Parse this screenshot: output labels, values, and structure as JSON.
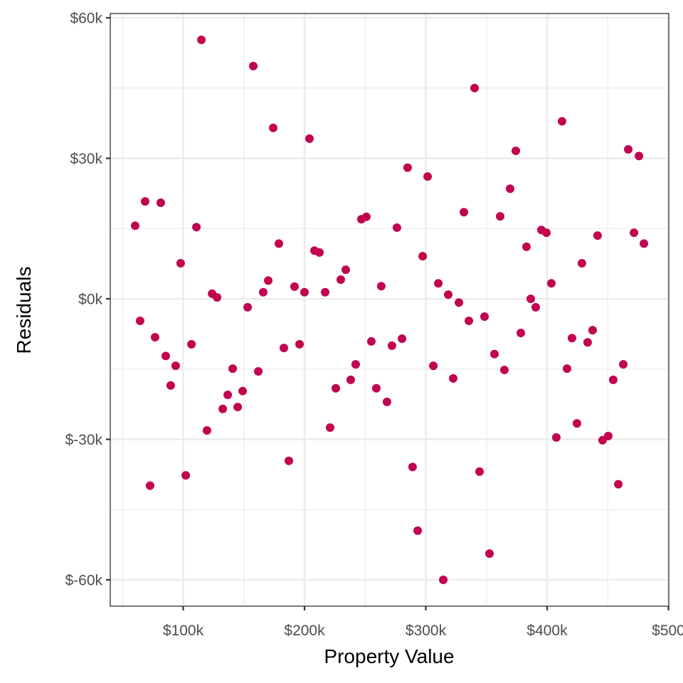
{
  "chart_data": {
    "type": "scatter",
    "title": "",
    "xlabel": "Property Value",
    "ylabel": "Residuals",
    "xlim": [
      40,
      500
    ],
    "ylim": [
      -66,
      60
    ],
    "x_ticks": [
      100,
      200,
      300,
      400,
      500
    ],
    "x_tick_labels": [
      "$100k",
      "$200k",
      "$300k",
      "$400k",
      "$500"
    ],
    "y_ticks": [
      60,
      30,
      0,
      -30,
      -60
    ],
    "y_tick_labels": [
      "$60k",
      "$30k",
      "$0k",
      "$-30k",
      "$-60k"
    ],
    "grid": true,
    "legend": null,
    "point_color": "#C2044F",
    "units": "thousands of dollars",
    "series": [
      {
        "name": "residuals",
        "x": [
          60.4,
          64.5,
          68.6,
          72.7,
          76.8,
          81.5,
          85.6,
          89.7,
          93.8,
          97.9,
          102.1,
          106.8,
          110.9,
          115.0,
          119.6,
          123.8,
          127.9,
          132.6,
          136.7,
          140.8,
          144.9,
          149.0,
          153.1,
          157.8,
          161.9,
          166.0,
          170.1,
          174.2,
          178.9,
          183.0,
          187.1,
          191.8,
          195.9,
          200.0,
          204.1,
          208.2,
          212.3,
          217.0,
          221.1,
          225.8,
          229.9,
          234.0,
          238.1,
          242.2,
          246.9,
          251.0,
          255.1,
          259.2,
          263.3,
          268.0,
          272.1,
          276.2,
          280.4,
          285.0,
          289.1,
          293.3,
          297.4,
          301.5,
          306.2,
          310.3,
          314.4,
          318.5,
          322.6,
          327.3,
          331.4,
          335.5,
          340.2,
          344.3,
          348.4,
          352.5,
          356.6,
          361.3,
          364.8,
          369.5,
          374.2,
          378.3,
          383.0,
          386.5,
          390.6,
          395.3,
          399.4,
          403.5,
          407.6,
          412.3,
          416.4,
          420.5,
          424.6,
          428.7,
          433.4,
          437.5,
          441.6,
          445.7,
          450.4,
          454.5,
          458.7,
          462.8,
          466.9,
          471.6,
          475.7,
          479.8
        ],
        "y": [
          15.6,
          -4.7,
          20.8,
          -39.9,
          -8.2,
          20.5,
          -12.2,
          -18.5,
          -14.3,
          7.6,
          -37.7,
          -9.7,
          15.3,
          55.3,
          -28.1,
          1.1,
          0.3,
          -23.5,
          -20.5,
          -14.9,
          -23.1,
          -19.7,
          -1.8,
          49.7,
          -15.5,
          1.4,
          3.9,
          36.5,
          11.8,
          -10.5,
          -34.6,
          2.6,
          -9.7,
          1.4,
          34.2,
          10.3,
          9.9,
          1.4,
          -27.5,
          -19.1,
          4.1,
          6.2,
          -17.3,
          -14.0,
          17.0,
          17.5,
          -9.1,
          -19.1,
          2.7,
          -22.0,
          -10.0,
          15.2,
          -8.5,
          28.0,
          -35.9,
          -49.5,
          9.1,
          26.1,
          -14.3,
          3.3,
          -60.0,
          0.9,
          -17.0,
          -0.8,
          18.5,
          -4.7,
          45.0,
          -36.9,
          -3.8,
          -54.4,
          -11.8,
          17.6,
          -15.2,
          23.5,
          31.6,
          -7.3,
          11.1,
          0.0,
          -1.8,
          14.7,
          14.1,
          3.3,
          -29.6,
          37.9,
          -14.9,
          -8.4,
          -26.6,
          7.6,
          -9.3,
          -6.7,
          13.5,
          -30.2,
          -29.3,
          -17.3,
          -39.6,
          -14.0,
          31.9,
          14.1,
          30.5,
          11.8
        ]
      }
    ]
  }
}
